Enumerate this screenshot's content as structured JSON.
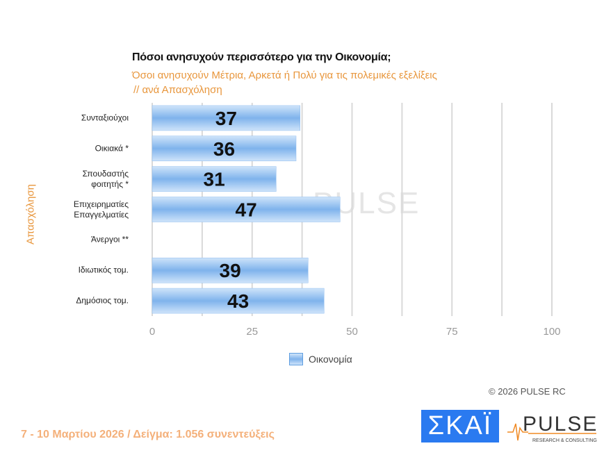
{
  "chart_data": {
    "type": "bar",
    "orientation": "horizontal",
    "title": "Πόσοι ανησυχούν περισσότερο για την Οικονομία;",
    "subtitle": [
      "Όσοι ανησυχούν Μέτρια, Αρκετά ή Πολύ για τις πολεμικές εξελίξεις",
      " // ανά Απασχόληση"
    ],
    "ylabel": "Απασχόληση",
    "categories": [
      [
        "Συνταξιούχοι"
      ],
      [
        "Οικιακά *"
      ],
      [
        "Σπουδαστής",
        "φοιτητής *"
      ],
      [
        "Επιχειρηματίες",
        "Επαγγελματίες"
      ],
      [
        "Άνεργοι **"
      ],
      [
        "Ιδιωτικός τομ."
      ],
      [
        "Δημόσιος τομ."
      ]
    ],
    "series": [
      {
        "name": "Οικονομία",
        "values": [
          37,
          36,
          31,
          47,
          null,
          39,
          43
        ]
      }
    ],
    "data_labels": [
      "37",
      "36",
      "31",
      "47",
      "",
      "39",
      "43"
    ],
    "xlim": [
      0,
      100
    ],
    "xticks": [
      "0",
      "25",
      "50",
      "75",
      "100"
    ],
    "grid": true,
    "legend": "bottom",
    "bar_color": "#7fb3ec"
  },
  "footer": {
    "copyright": "©  2026  PULSE RC",
    "dates": "7 - 10  Μαρτίου 2026  /  Δείγμα:  1.056 συνεντεύξεις",
    "logo_skai": "ΣΚΑΪ",
    "logo_pulse": "PULSE",
    "logo_pulse_sub": "RESEARCH & CONSULTING"
  },
  "watermark": "PULSE"
}
